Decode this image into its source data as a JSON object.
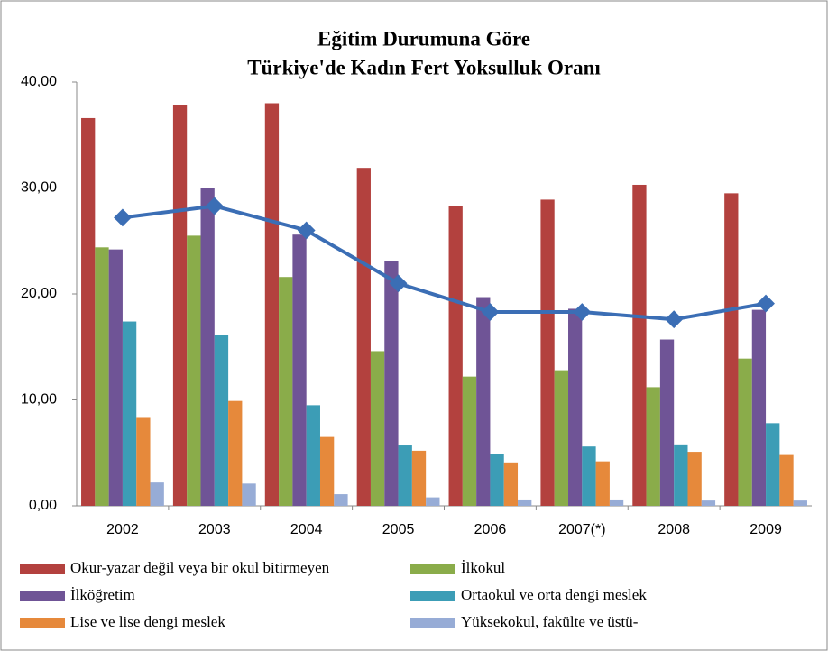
{
  "chart_data": {
    "type": "bar",
    "title": [
      "Eğitim Durumuna Göre",
      "Türkiye'de Kadın Fert Yoksulluk Oranı"
    ],
    "categories": [
      "2002",
      "2003",
      "2004",
      "2005",
      "2006",
      "2007(*)",
      "2008",
      "2009"
    ],
    "series": [
      {
        "name": "Okur-yazar değil veya bir okul bitirmeyen",
        "color": "#b3413e",
        "values": [
          36.6,
          37.8,
          38.0,
          31.9,
          28.3,
          28.9,
          30.3,
          29.5
        ]
      },
      {
        "name": "İlkokul",
        "color": "#8aac4a",
        "values": [
          24.4,
          25.5,
          21.6,
          14.6,
          12.2,
          12.8,
          11.2,
          13.9
        ]
      },
      {
        "name": "İlköğretim",
        "color": "#6f5496",
        "values": [
          24.2,
          30.0,
          25.6,
          23.1,
          19.7,
          18.6,
          15.7,
          18.5
        ]
      },
      {
        "name": "Ortaokul ve orta dengi meslek",
        "color": "#3c9db6",
        "values": [
          17.4,
          16.1,
          9.5,
          5.7,
          4.9,
          5.6,
          5.8,
          7.8
        ]
      },
      {
        "name": "Lise ve lise dengi meslek",
        "color": "#e6893b",
        "values": [
          8.3,
          9.9,
          6.5,
          5.2,
          4.1,
          4.2,
          5.1,
          4.8
        ]
      },
      {
        "name": "Yüksekokul, fakülte ve üstü-",
        "color": "#97acd6",
        "values": [
          2.2,
          2.1,
          1.1,
          0.8,
          0.6,
          0.6,
          0.5,
          0.5
        ]
      }
    ],
    "line": {
      "color": "#3b6eb5",
      "values": [
        27.2,
        28.3,
        26.0,
        21.0,
        18.3,
        18.3,
        17.6,
        19.1
      ]
    },
    "ylim": [
      0,
      40
    ],
    "yticks": [
      {
        "value": 0,
        "label": "0,00"
      },
      {
        "value": 10,
        "label": "10,00"
      },
      {
        "value": 20,
        "label": "20,00"
      },
      {
        "value": 30,
        "label": "30,00"
      },
      {
        "value": 40,
        "label": "40,00"
      }
    ],
    "legend": "bottom"
  }
}
